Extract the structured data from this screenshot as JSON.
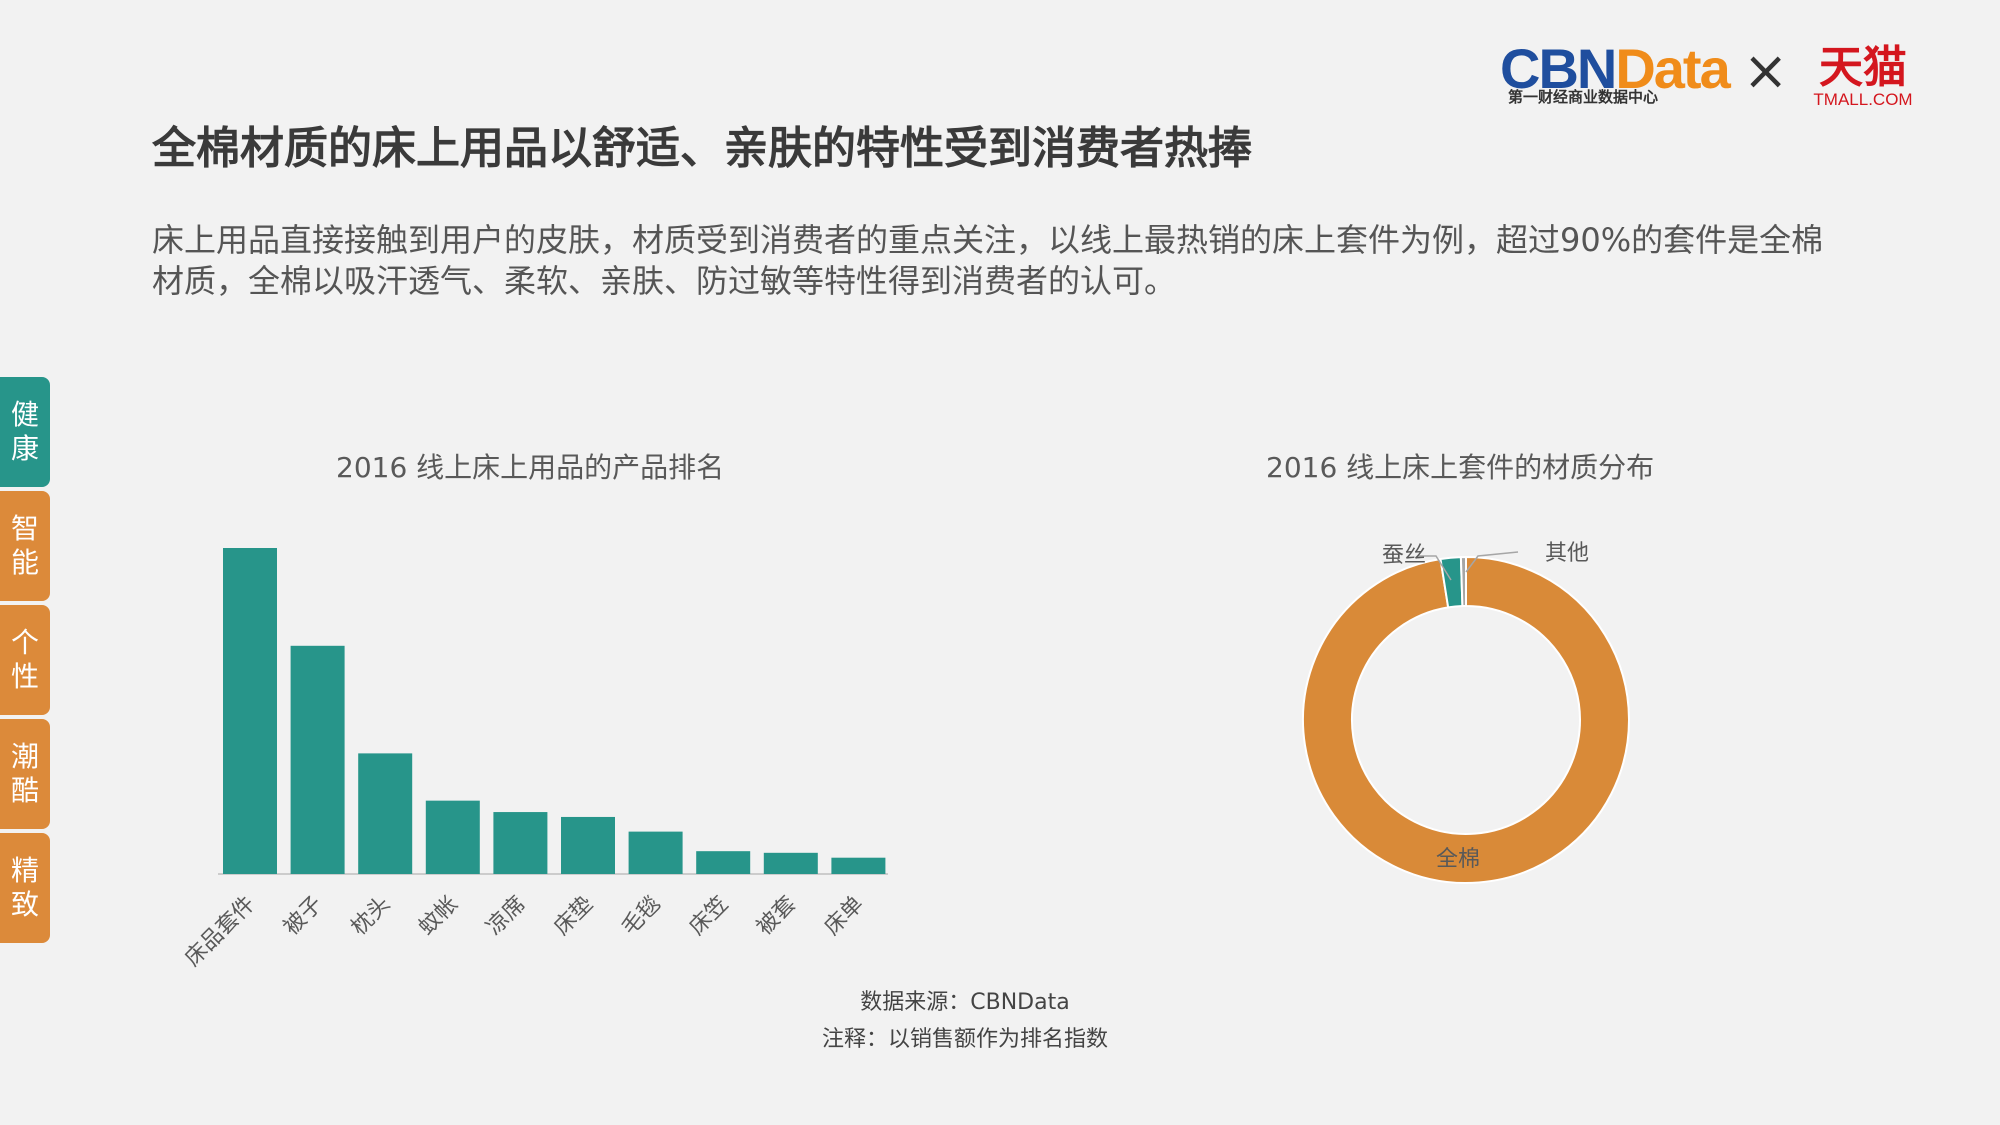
{
  "branding": {
    "cbn_logo_blue": "CBN",
    "cbn_logo_orange": "Data",
    "cbn_subtitle": "第一财经商业数据中心",
    "times_symbol": "×",
    "tmall_cn": "天猫",
    "tmall_en": "TMALL.COM",
    "colors": {
      "cbn_blue": "#1f4e9e",
      "cbn_orange": "#f08c1a",
      "tmall_red": "#d4161e"
    }
  },
  "page": {
    "title": "全棉材质的床上用品以舒适、亲肤的特性受到消费者热捧",
    "description": "床上用品直接接触到用户的皮肤，材质受到消费者的重点关注，以线上最热销的床上套件为例，超过90%的套件是全棉材质，全棉以吸汗透气、柔软、亲肤、防过敏等特性得到消费者的认可。"
  },
  "side_nav": {
    "items": [
      {
        "chars": [
          "健",
          "康"
        ],
        "active": true
      },
      {
        "chars": [
          "智",
          "能"
        ],
        "active": false
      },
      {
        "chars": [
          "个",
          "性"
        ],
        "active": false
      },
      {
        "chars": [
          "潮",
          "酷"
        ],
        "active": false
      },
      {
        "chars": [
          "精",
          "致"
        ],
        "active": false
      }
    ],
    "colors": {
      "active": "#27958a",
      "inactive": "#dc8a3a"
    }
  },
  "chart_data": [
    {
      "type": "bar",
      "title": "2016 线上床上用品的产品排名",
      "categories": [
        "床品套件",
        "被子",
        "枕头",
        "蚊帐",
        "凉席",
        "床垫",
        "毛毯",
        "床笠",
        "被套",
        "床单"
      ],
      "values": [
        100,
        70,
        37,
        22.5,
        19,
        17.5,
        13,
        7,
        6.5,
        5
      ],
      "ylim": [
        0,
        100
      ],
      "xlabel": "",
      "ylabel": "",
      "grid": false,
      "color": "#27958a"
    },
    {
      "type": "pie",
      "donut": true,
      "title": "2016 线上床上套件的材质分布",
      "slices": [
        {
          "label": "全棉",
          "value": 97.5,
          "color": "#d98a38"
        },
        {
          "label": "蚕丝",
          "value": 2.0,
          "color": "#27958a"
        },
        {
          "label": "其他",
          "value": 0.5,
          "color": "#a6a6a6"
        }
      ]
    }
  ],
  "notes": {
    "source": "数据来源：CBNData",
    "remark": "注释：以销售额作为排名指数"
  }
}
